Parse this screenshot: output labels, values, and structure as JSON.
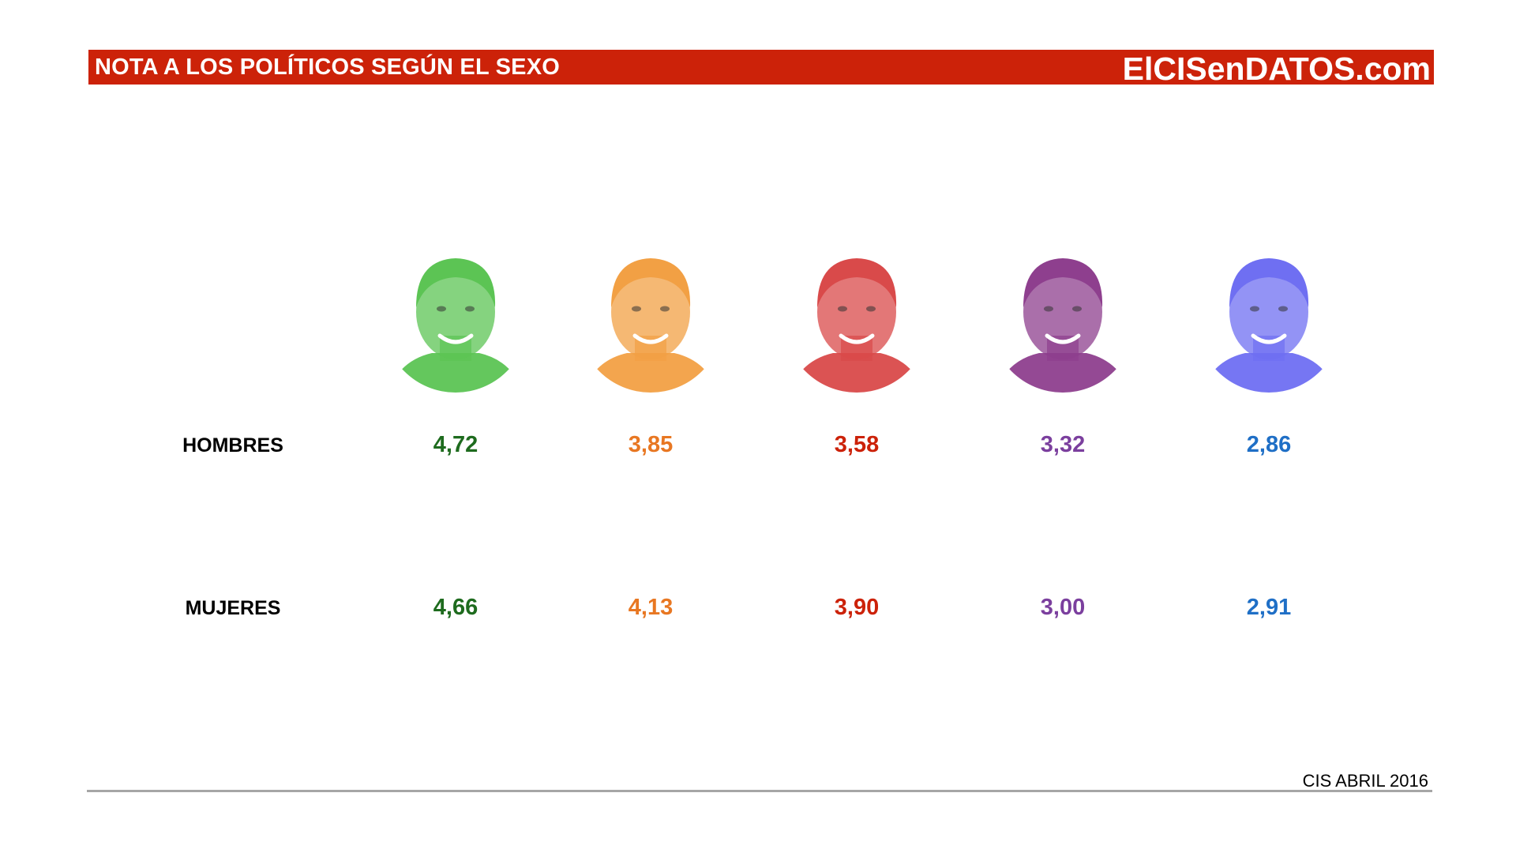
{
  "header": {
    "title": "NOTA A LOS POLÍTICOS SEGÚN EL SEXO",
    "brand": "ElCISenDATOS.com",
    "color": "#cc2209"
  },
  "source": "CIS ABRIL 2016",
  "chart_data": {
    "type": "table",
    "row_labels": [
      "HOMBRES",
      "MUJERES"
    ],
    "columns": [
      {
        "color": "#1e6b1e",
        "portrait_tint": "#5cc454",
        "values": [
          "4,72",
          "4,66"
        ]
      },
      {
        "color": "#e87722",
        "portrait_tint": "#f2a044",
        "values": [
          "3,85",
          "4,13"
        ]
      },
      {
        "color": "#cc2209",
        "portrait_tint": "#d94a4a",
        "values": [
          "3,58",
          "3,90"
        ]
      },
      {
        "color": "#7b3f9e",
        "portrait_tint": "#8e3f8e",
        "values": [
          "3,32",
          "3,00"
        ]
      },
      {
        "color": "#1f6fc6",
        "portrait_tint": "#6f6ff2",
        "values": [
          "2,86",
          "2,91"
        ]
      }
    ]
  }
}
